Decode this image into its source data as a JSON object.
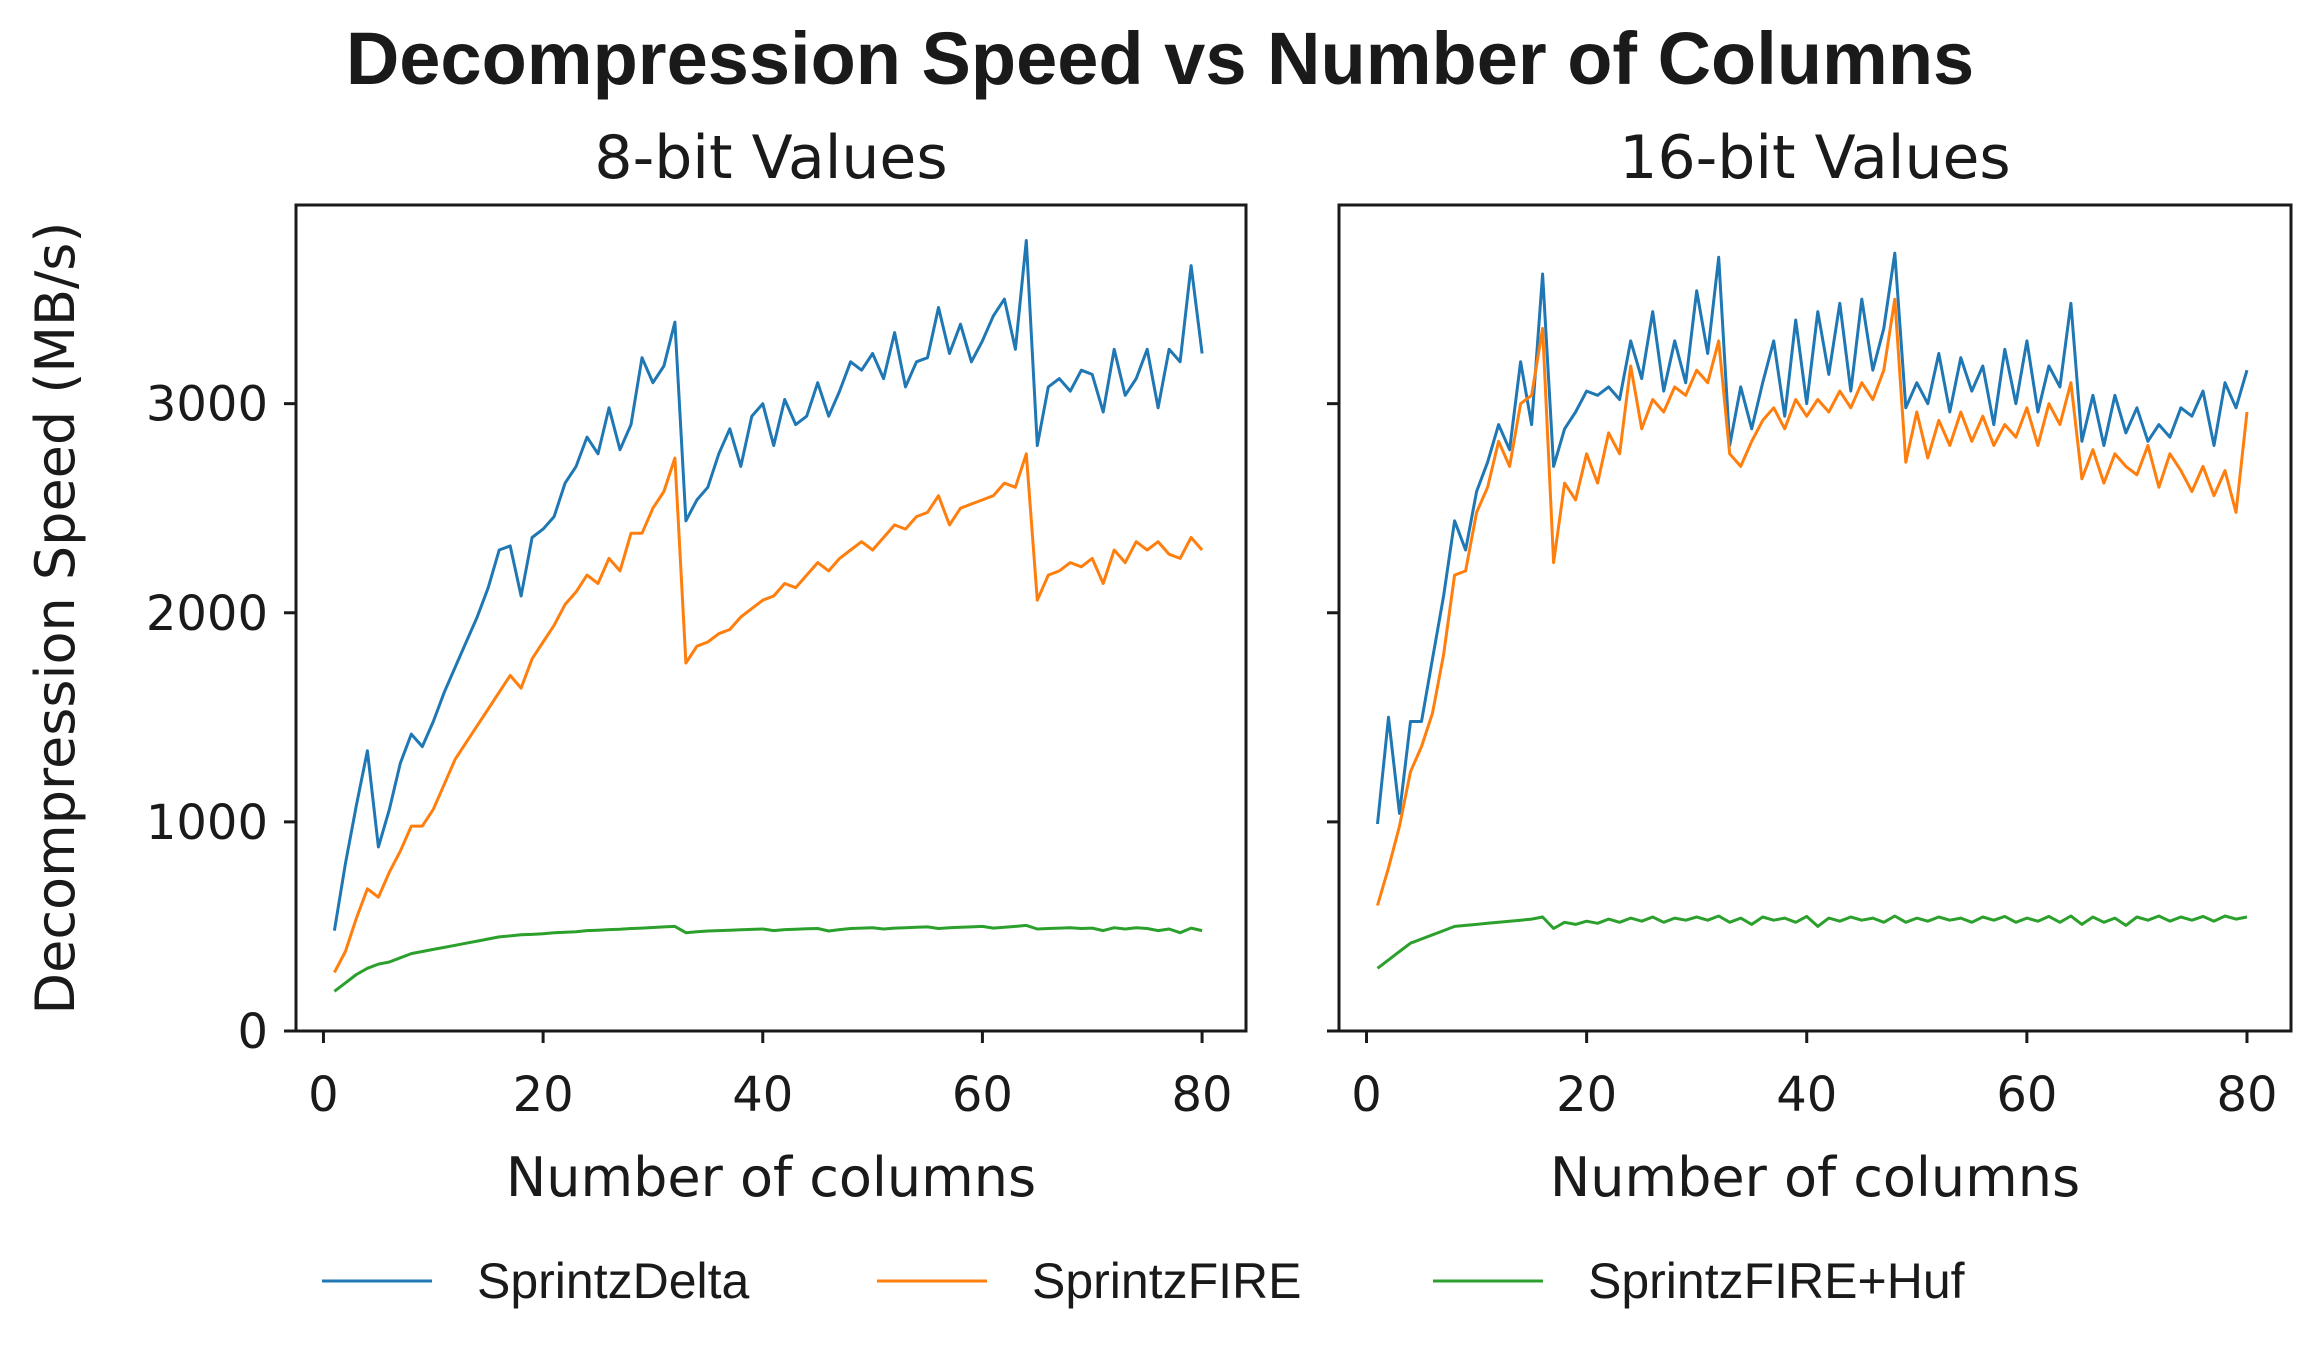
{
  "title": "Decompression Speed vs Number of Columns",
  "legend": [
    {
      "name": "SprintzDelta",
      "color": "#1f77b4"
    },
    {
      "name": "SprintzFIRE",
      "color": "#ff7f0e"
    },
    {
      "name": "SprintzFIRE+Huf",
      "color": "#2ca02c"
    }
  ],
  "chart_data": [
    {
      "type": "line",
      "title": "8-bit Values",
      "xlabel": "Number of columns",
      "ylabel": "Decompression Speed (MB/s)",
      "xlim": [
        -2.5,
        84
      ],
      "ylim": [
        0,
        3950
      ],
      "xticks": [
        0,
        20,
        40,
        60,
        80
      ],
      "yticks": [
        0,
        1000,
        2000,
        3000
      ],
      "grid": false,
      "series": [
        {
          "name": "SprintzDelta",
          "color": "#1f77b4",
          "x": [
            1,
            2,
            3,
            4,
            5,
            6,
            7,
            8,
            9,
            10,
            11,
            12,
            13,
            14,
            15,
            16,
            17,
            18,
            19,
            20,
            21,
            22,
            23,
            24,
            25,
            26,
            27,
            28,
            29,
            30,
            31,
            32,
            33,
            34,
            35,
            36,
            37,
            38,
            39,
            40,
            41,
            42,
            43,
            44,
            45,
            46,
            47,
            48,
            49,
            50,
            51,
            52,
            53,
            54,
            55,
            56,
            57,
            58,
            59,
            60,
            61,
            62,
            63,
            64,
            65,
            66,
            67,
            68,
            69,
            70,
            71,
            72,
            73,
            74,
            75,
            76,
            77,
            78,
            79,
            80
          ],
          "y": [
            480,
            800,
            1080,
            1340,
            880,
            1060,
            1280,
            1420,
            1360,
            1480,
            1620,
            1740,
            1860,
            1980,
            2120,
            2300,
            2320,
            2080,
            2360,
            2400,
            2460,
            2620,
            2700,
            2840,
            2760,
            2980,
            2780,
            2900,
            3220,
            3100,
            3180,
            3390,
            2440,
            2540,
            2600,
            2760,
            2880,
            2700,
            2940,
            3000,
            2800,
            3020,
            2900,
            2940,
            3100,
            2940,
            3060,
            3200,
            3160,
            3240,
            3120,
            3340,
            3080,
            3200,
            3220,
            3460,
            3240,
            3380,
            3200,
            3300,
            3420,
            3500,
            3260,
            3780,
            2800,
            3080,
            3120,
            3060,
            3160,
            3140,
            2960,
            3260,
            3040,
            3120,
            3260,
            2980,
            3260,
            3200,
            3660,
            3240
          ]
        },
        {
          "name": "SprintzFIRE",
          "color": "#ff7f0e",
          "x": [
            1,
            2,
            3,
            4,
            5,
            6,
            7,
            8,
            9,
            10,
            11,
            12,
            13,
            14,
            15,
            16,
            17,
            18,
            19,
            20,
            21,
            22,
            23,
            24,
            25,
            26,
            27,
            28,
            29,
            30,
            31,
            32,
            33,
            34,
            35,
            36,
            37,
            38,
            39,
            40,
            41,
            42,
            43,
            44,
            45,
            46,
            47,
            48,
            49,
            50,
            51,
            52,
            53,
            54,
            55,
            56,
            57,
            58,
            59,
            60,
            61,
            62,
            63,
            64,
            65,
            66,
            67,
            68,
            69,
            70,
            71,
            72,
            73,
            74,
            75,
            76,
            77,
            78,
            79,
            80
          ],
          "y": [
            280,
            380,
            540,
            680,
            640,
            760,
            860,
            980,
            980,
            1060,
            1180,
            1300,
            1380,
            1460,
            1540,
            1620,
            1700,
            1640,
            1780,
            1860,
            1940,
            2040,
            2100,
            2180,
            2140,
            2260,
            2200,
            2380,
            2380,
            2500,
            2580,
            2740,
            1760,
            1840,
            1860,
            1900,
            1920,
            1980,
            2020,
            2060,
            2080,
            2140,
            2120,
            2180,
            2240,
            2200,
            2260,
            2300,
            2340,
            2300,
            2360,
            2420,
            2400,
            2460,
            2480,
            2560,
            2420,
            2500,
            2520,
            2540,
            2560,
            2620,
            2600,
            2760,
            2060,
            2180,
            2200,
            2240,
            2220,
            2260,
            2140,
            2300,
            2240,
            2340,
            2300,
            2340,
            2280,
            2260,
            2360,
            2300
          ]
        },
        {
          "name": "SprintzFIRE+Huf",
          "color": "#2ca02c",
          "x": [
            1,
            2,
            3,
            4,
            5,
            6,
            7,
            8,
            9,
            10,
            11,
            12,
            13,
            14,
            15,
            16,
            17,
            18,
            19,
            20,
            21,
            22,
            23,
            24,
            25,
            26,
            27,
            28,
            29,
            30,
            31,
            32,
            33,
            34,
            35,
            36,
            37,
            38,
            39,
            40,
            41,
            42,
            43,
            44,
            45,
            46,
            47,
            48,
            49,
            50,
            51,
            52,
            53,
            54,
            55,
            56,
            57,
            58,
            59,
            60,
            61,
            62,
            63,
            64,
            65,
            66,
            67,
            68,
            69,
            70,
            71,
            72,
            73,
            74,
            75,
            76,
            77,
            78,
            79,
            80
          ],
          "y": [
            190,
            230,
            270,
            300,
            320,
            330,
            350,
            370,
            380,
            390,
            400,
            410,
            420,
            430,
            440,
            450,
            455,
            460,
            462,
            465,
            470,
            472,
            475,
            480,
            482,
            485,
            487,
            490,
            492,
            495,
            498,
            500,
            470,
            475,
            478,
            480,
            482,
            484,
            486,
            488,
            480,
            485,
            487,
            489,
            490,
            478,
            485,
            490,
            492,
            494,
            488,
            492,
            494,
            496,
            498,
            490,
            494,
            496,
            498,
            500,
            492,
            496,
            500,
            505,
            488,
            490,
            492,
            494,
            490,
            492,
            480,
            494,
            488,
            494,
            490,
            480,
            488,
            470,
            492,
            480
          ]
        }
      ]
    },
    {
      "type": "line",
      "title": "16-bit Values",
      "xlabel": "Number of columns",
      "ylabel": "",
      "xlim": [
        -2.5,
        84
      ],
      "ylim": [
        0,
        3950
      ],
      "xticks": [
        0,
        20,
        40,
        60,
        80
      ],
      "yticks": [
        0,
        1000,
        2000,
        3000
      ],
      "grid": false,
      "series": [
        {
          "name": "SprintzDelta",
          "color": "#1f77b4",
          "x": [
            1,
            2,
            3,
            4,
            5,
            6,
            7,
            8,
            9,
            10,
            11,
            12,
            13,
            14,
            15,
            16,
            17,
            18,
            19,
            20,
            21,
            22,
            23,
            24,
            25,
            26,
            27,
            28,
            29,
            30,
            31,
            32,
            33,
            34,
            35,
            36,
            37,
            38,
            39,
            40,
            41,
            42,
            43,
            44,
            45,
            46,
            47,
            48,
            49,
            50,
            51,
            52,
            53,
            54,
            55,
            56,
            57,
            58,
            59,
            60,
            61,
            62,
            63,
            64,
            65,
            66,
            67,
            68,
            69,
            70,
            71,
            72,
            73,
            74,
            75,
            76,
            77,
            78,
            79,
            80
          ],
          "y": [
            990,
            1500,
            1040,
            1480,
            1480,
            1780,
            2080,
            2440,
            2300,
            2580,
            2720,
            2900,
            2780,
            3200,
            2900,
            3620,
            2700,
            2880,
            2960,
            3060,
            3040,
            3080,
            3020,
            3300,
            3120,
            3440,
            3060,
            3300,
            3100,
            3540,
            3240,
            3700,
            2800,
            3080,
            2880,
            3100,
            3300,
            2940,
            3400,
            3000,
            3440,
            3140,
            3480,
            3060,
            3500,
            3160,
            3360,
            3720,
            2980,
            3100,
            3000,
            3240,
            2960,
            3220,
            3060,
            3180,
            2900,
            3260,
            3000,
            3300,
            2960,
            3180,
            3080,
            3480,
            2820,
            3040,
            2800,
            3040,
            2860,
            2980,
            2820,
            2900,
            2840,
            2980,
            2940,
            3060,
            2800,
            3100,
            2980,
            3160
          ]
        },
        {
          "name": "SprintzFIRE",
          "color": "#ff7f0e",
          "x": [
            1,
            2,
            3,
            4,
            5,
            6,
            7,
            8,
            9,
            10,
            11,
            12,
            13,
            14,
            15,
            16,
            17,
            18,
            19,
            20,
            21,
            22,
            23,
            24,
            25,
            26,
            27,
            28,
            29,
            30,
            31,
            32,
            33,
            34,
            35,
            36,
            37,
            38,
            39,
            40,
            41,
            42,
            43,
            44,
            45,
            46,
            47,
            48,
            49,
            50,
            51,
            52,
            53,
            54,
            55,
            56,
            57,
            58,
            59,
            60,
            61,
            62,
            63,
            64,
            65,
            66,
            67,
            68,
            69,
            70,
            71,
            72,
            73,
            74,
            75,
            76,
            77,
            78,
            79,
            80
          ],
          "y": [
            600,
            780,
            980,
            1240,
            1360,
            1520,
            1800,
            2180,
            2200,
            2480,
            2600,
            2820,
            2700,
            3000,
            3040,
            3360,
            2240,
            2620,
            2540,
            2760,
            2620,
            2860,
            2760,
            3180,
            2880,
            3020,
            2960,
            3080,
            3040,
            3160,
            3100,
            3300,
            2760,
            2700,
            2820,
            2920,
            2980,
            2880,
            3020,
            2940,
            3020,
            2960,
            3060,
            2980,
            3100,
            3020,
            3160,
            3500,
            2720,
            2960,
            2740,
            2920,
            2800,
            2960,
            2820,
            2940,
            2800,
            2900,
            2840,
            2980,
            2800,
            3000,
            2900,
            3100,
            2640,
            2780,
            2620,
            2760,
            2700,
            2660,
            2800,
            2600,
            2760,
            2680,
            2580,
            2700,
            2560,
            2680,
            2480,
            2960
          ]
        },
        {
          "name": "SprintzFIRE+Huf",
          "color": "#2ca02c",
          "x": [
            1,
            2,
            3,
            4,
            5,
            6,
            7,
            8,
            9,
            10,
            11,
            12,
            13,
            14,
            15,
            16,
            17,
            18,
            19,
            20,
            21,
            22,
            23,
            24,
            25,
            26,
            27,
            28,
            29,
            30,
            31,
            32,
            33,
            34,
            35,
            36,
            37,
            38,
            39,
            40,
            41,
            42,
            43,
            44,
            45,
            46,
            47,
            48,
            49,
            50,
            51,
            52,
            53,
            54,
            55,
            56,
            57,
            58,
            59,
            60,
            61,
            62,
            63,
            64,
            65,
            66,
            67,
            68,
            69,
            70,
            71,
            72,
            73,
            74,
            75,
            76,
            77,
            78,
            79,
            80
          ],
          "y": [
            300,
            340,
            380,
            420,
            440,
            460,
            480,
            500,
            505,
            510,
            515,
            520,
            525,
            530,
            535,
            545,
            490,
            520,
            510,
            525,
            515,
            535,
            520,
            540,
            525,
            545,
            520,
            540,
            530,
            545,
            530,
            550,
            520,
            540,
            510,
            545,
            530,
            540,
            520,
            548,
            500,
            540,
            525,
            545,
            530,
            540,
            520,
            550,
            520,
            540,
            525,
            545,
            530,
            540,
            520,
            545,
            530,
            548,
            520,
            540,
            525,
            548,
            520,
            550,
            510,
            545,
            520,
            540,
            505,
            545,
            530,
            550,
            525,
            545,
            530,
            548,
            525,
            550,
            535,
            545
          ]
        }
      ]
    }
  ]
}
